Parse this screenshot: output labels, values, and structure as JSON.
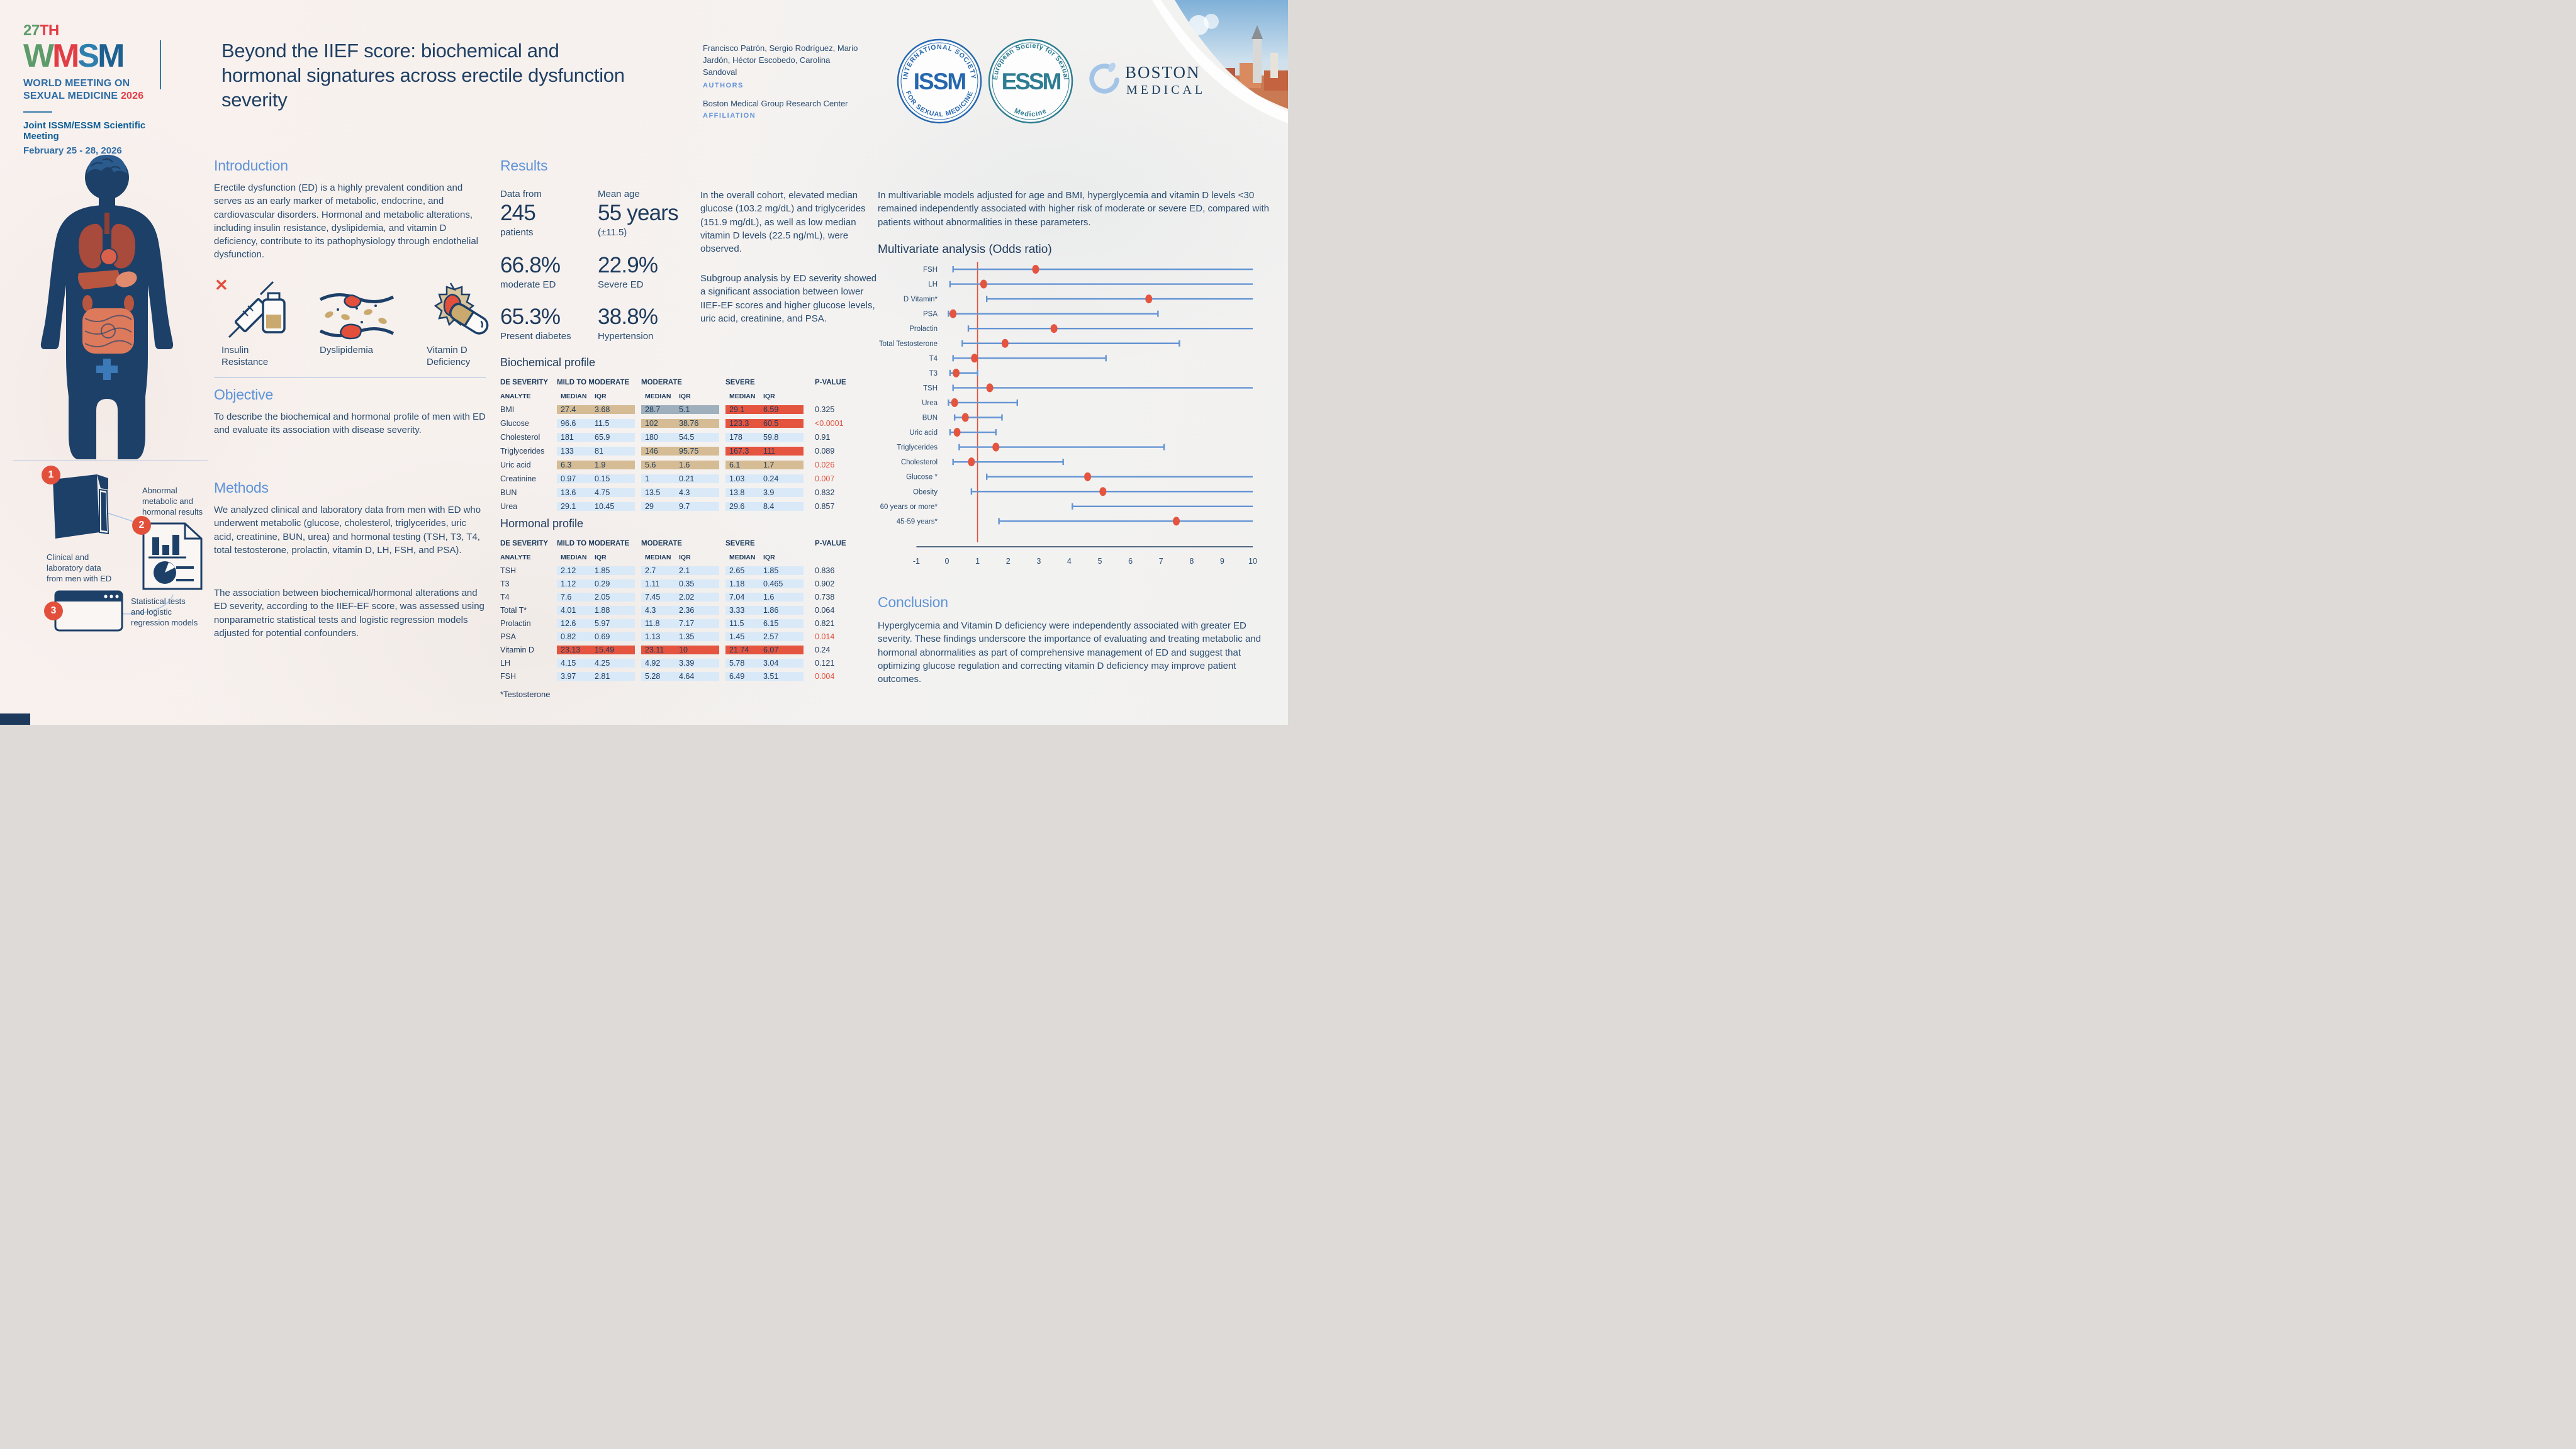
{
  "event": {
    "number_green": "27",
    "number_red": "TH",
    "letters": [
      {
        "ch": "W",
        "color": "#5d9b6a"
      },
      {
        "ch": "M",
        "color": "#e23c44"
      },
      {
        "ch": "S",
        "color": "#2f7fae"
      },
      {
        "ch": "M",
        "color": "#1e6091"
      }
    ],
    "name_line1": "WORLD MEETING ON",
    "name_line2": "SEXUAL MEDICINE",
    "year": "2026",
    "meeting": "Joint ISSM/ESSM Scientific Meeting",
    "dates": "February 25 - 28, 2026"
  },
  "header": {
    "title": "Beyond the IIEF score: biochemical and hormonal signatures across erectile dysfunction severity",
    "authors": "Francisco Patrón, Sergio Rodríguez, Mario Jardón, Héctor Escobedo, Carolina Sandoval",
    "authors_label": "AUTHORS",
    "affiliation": "Boston Medical Group Research Center",
    "affiliation_label": "AFFILIATION"
  },
  "logos": {
    "issm_center": "ISSM",
    "issm_top": "INTERNATIONAL SOCIETY",
    "issm_bottom": "FOR SEXUAL MEDICINE",
    "essm_center": "ESSM",
    "essm_top": "European Society for Sexual",
    "essm_bottom": "Medicine",
    "boston_line1": "BOSTON",
    "boston_line2": "MEDICAL"
  },
  "intro": {
    "heading": "Introduction",
    "text": "Erectile dysfunction (ED) is a highly prevalent condition and serves as an early marker of metabolic, endocrine, and cardiovascular disorders. Hormonal and metabolic alterations, including insulin resistance, dyslipidemia, and vitamin D deficiency, contribute to its pathophysiology through endothelial dysfunction.",
    "icons": [
      {
        "label": "Insulin\nResistance"
      },
      {
        "label": "Dyslipidemia"
      },
      {
        "label": "Vitamin D\nDeficiency"
      }
    ]
  },
  "objective": {
    "heading": "Objective",
    "text": "To describe the biochemical and hormonal profile of men with ED and evaluate its association with disease severity."
  },
  "methods": {
    "heading": "Methods",
    "p1": "We analyzed clinical and laboratory data from men with ED who underwent metabolic (glucose, cholesterol, triglycerides, uric acid, creatinine, BUN, urea) and hormonal testing (TSH, T3, T4, total testosterone, prolactin, vitamin D, LH, FSH, and PSA).",
    "p2": " The association between biochemical/hormonal alterations and ED severity, according to the IIEF-EF score, was assessed using nonparametric statistical tests and logistic regression models adjusted for potential confounders.",
    "steps": [
      {
        "num": "1",
        "label": "Clinical and\nlaboratory data\nfrom men with ED"
      },
      {
        "num": "2",
        "label": "Abnormal\nmetabolic and\nhormonal results"
      },
      {
        "num": "3",
        "label": "Statistical tests\nand logistic\nregression models"
      }
    ]
  },
  "results": {
    "heading": "Results",
    "stats": [
      {
        "label": "Data from",
        "big": "245",
        "sub": "patients"
      },
      {
        "label": "Mean age",
        "big": "55 years",
        "sub": "(±11.5)"
      },
      {
        "big": "66.8%",
        "sub": "moderate ED"
      },
      {
        "big": "22.9%",
        "sub": "Severe ED"
      },
      {
        "big": "65.3%",
        "sub": "Present diabetes"
      },
      {
        "big": "38.8%",
        "sub": "Hypertension"
      }
    ],
    "p1": "In the overall cohort, elevated median glucose (103.2 mg/dL) and triglycerides (151.9 mg/dL), as well as low median vitamin D levels (22.5 ng/mL), were observed.",
    "p2": "Subgroup analysis by ED severity showed a significant association between lower IIEF-EF scores and higher glucose levels, uric acid, creatinine, and PSA."
  },
  "multivariate": {
    "intro_text": "In multivariable models adjusted for age and BMI, hyperglycemia and vitamin D levels <30 remained independently associated with higher risk of moderate or severe ED, compared with patients without abnormalities in these parameters.",
    "heading": "Multivariate analysis (Odds ratio)"
  },
  "conclusion": {
    "heading": "Conclusion",
    "text": "Hyperglycemia and Vitamin D deficiency were independently associated with greater ED severity. These findings underscore the importance of evaluating and treating metabolic and hormonal abnormalities as part of comprehensive management of ED and suggest that optimizing glucose regulation and correcting vitamin D deficiency may improve patient outcomes."
  },
  "tables_footnote": "*Testosterone",
  "colors": {
    "accent_blue": "#5e93d8",
    "navy": "#1d3a5c",
    "body_text": "#2a4d71",
    "red": "#e2503c",
    "cell_tan": "#d5bc95",
    "cell_blue": "#d9e9f8",
    "cell_gray": "#9fafbc",
    "cell_red": "#e4543f",
    "ci_blue": "#6494d4"
  },
  "chart_data": [
    {
      "type": "scatter",
      "subtype": "forest-plot",
      "title": "Multivariate analysis (Odds ratio)",
      "xlabel": "Odds ratio",
      "xlim": [
        -1,
        10
      ],
      "x_ticks": [
        -1,
        0,
        1,
        2,
        3,
        4,
        5,
        6,
        7,
        8,
        9,
        10
      ],
      "reference_line": 1,
      "grid": false,
      "legend_position": "none",
      "rows": [
        {
          "label": "FSH",
          "or": 2.9,
          "lo": 0.2,
          "hi": 10,
          "hi_clipped": true
        },
        {
          "label": "LH",
          "or": 1.2,
          "lo": 0.1,
          "hi": 10,
          "hi_clipped": true
        },
        {
          "label": "D Vitamin*",
          "or": 6.6,
          "lo": 1.3,
          "hi": 10,
          "hi_clipped": true
        },
        {
          "label": "PSA",
          "or": 0.2,
          "lo": 0.05,
          "hi": 6.9,
          "hi_clipped": false
        },
        {
          "label": "Prolactin",
          "or": 3.5,
          "lo": 0.7,
          "hi": 10,
          "hi_clipped": true
        },
        {
          "label": "Total Testosterone",
          "or": 1.9,
          "lo": 0.5,
          "hi": 7.6,
          "hi_clipped": false
        },
        {
          "label": "T4",
          "or": 0.9,
          "lo": 0.2,
          "hi": 5.2,
          "hi_clipped": false
        },
        {
          "label": "T3",
          "or": 0.3,
          "lo": 0.1,
          "hi": 1.0,
          "hi_clipped": false
        },
        {
          "label": "TSH",
          "or": 1.4,
          "lo": 0.2,
          "hi": 10,
          "hi_clipped": true
        },
        {
          "label": "Urea",
          "or": 0.25,
          "lo": 0.05,
          "hi": 2.3,
          "hi_clipped": false
        },
        {
          "label": "BUN",
          "or": 0.6,
          "lo": 0.25,
          "hi": 1.8,
          "hi_clipped": false
        },
        {
          "label": "Uric acid",
          "or": 0.33,
          "lo": 0.1,
          "hi": 1.6,
          "hi_clipped": false
        },
        {
          "label": "Triglycerides",
          "or": 1.6,
          "lo": 0.4,
          "hi": 7.1,
          "hi_clipped": false
        },
        {
          "label": "Cholesterol",
          "or": 0.8,
          "lo": 0.2,
          "hi": 3.8,
          "hi_clipped": false
        },
        {
          "label": "Glucose *",
          "or": 4.6,
          "lo": 1.3,
          "hi": 10,
          "hi_clipped": true
        },
        {
          "label": "Obesity",
          "or": 5.1,
          "lo": 0.8,
          "hi": 10,
          "hi_clipped": true
        },
        {
          "label": "60 years or more*",
          "or": null,
          "lo": 4.1,
          "hi": 10,
          "hi_clipped": true
        },
        {
          "label": "45-59 years*",
          "or": 7.5,
          "lo": 1.7,
          "hi": 10,
          "hi_clipped": true
        }
      ]
    },
    {
      "type": "table",
      "title": "Biochemical profile",
      "corner_header": "DE SEVERITY",
      "group_headers": [
        "MILD TO MODERATE",
        "MODERATE",
        "SEVERE"
      ],
      "pvalue_header": "P-VALUE",
      "analyte_header": "ANALYTE",
      "stat_headers": [
        "MEDIAN",
        "IQR"
      ],
      "rows": [
        {
          "analyte": "BMI",
          "groups": [
            {
              "m": "27.4",
              "iqr": "3.68",
              "bg": "tan"
            },
            {
              "m": "28.7",
              "iqr": "5.1",
              "bg": "gray"
            },
            {
              "m": "29.1",
              "iqr": "6.59",
              "bg": "red"
            }
          ],
          "p": "0.325",
          "p_red": false
        },
        {
          "analyte": "Glucose",
          "groups": [
            {
              "m": "96.6",
              "iqr": "11.5",
              "bg": "blue"
            },
            {
              "m": "102",
              "iqr": "38.76",
              "bg": "tan"
            },
            {
              "m": "123.3",
              "iqr": "60.5",
              "bg": "red"
            }
          ],
          "p": "<0.0001",
          "p_red": true
        },
        {
          "analyte": "Cholesterol",
          "groups": [
            {
              "m": "181",
              "iqr": "65.9",
              "bg": "blue"
            },
            {
              "m": "180",
              "iqr": "54.5",
              "bg": "blue"
            },
            {
              "m": "178",
              "iqr": "59.8",
              "bg": "blue"
            }
          ],
          "p": "0.91",
          "p_red": false
        },
        {
          "analyte": "Triglycerides",
          "groups": [
            {
              "m": "133",
              "iqr": "81",
              "bg": "blue"
            },
            {
              "m": "146",
              "iqr": "95.75",
              "bg": "tan"
            },
            {
              "m": "167.3",
              "iqr": "111",
              "bg": "red"
            }
          ],
          "p": "0.089",
          "p_red": false
        },
        {
          "analyte": "Uric acid",
          "groups": [
            {
              "m": "6.3",
              "iqr": "1.9",
              "bg": "tan"
            },
            {
              "m": "5.6",
              "iqr": "1.6",
              "bg": "tan"
            },
            {
              "m": "6.1",
              "iqr": "1.7",
              "bg": "tan"
            }
          ],
          "p": "0.026",
          "p_red": true
        },
        {
          "analyte": "Creatinine",
          "groups": [
            {
              "m": "0.97",
              "iqr": "0.15",
              "bg": "blue"
            },
            {
              "m": "1",
              "iqr": "0.21",
              "bg": "blue"
            },
            {
              "m": "1.03",
              "iqr": "0.24",
              "bg": "blue"
            }
          ],
          "p": "0.007",
          "p_red": true
        },
        {
          "analyte": "BUN",
          "groups": [
            {
              "m": "13.6",
              "iqr": "4.75",
              "bg": "blue"
            },
            {
              "m": "13.5",
              "iqr": "4.3",
              "bg": "blue"
            },
            {
              "m": "13.8",
              "iqr": "3.9",
              "bg": "blue"
            }
          ],
          "p": "0.832",
          "p_red": false
        },
        {
          "analyte": "Urea",
          "groups": [
            {
              "m": "29.1",
              "iqr": "10.45",
              "bg": "blue"
            },
            {
              "m": "29",
              "iqr": "9.7",
              "bg": "blue"
            },
            {
              "m": "29.6",
              "iqr": "8.4",
              "bg": "blue"
            }
          ],
          "p": "0.857",
          "p_red": false
        }
      ]
    },
    {
      "type": "table",
      "title": "Hormonal profile",
      "corner_header": "DE SEVERITY",
      "group_headers": [
        "MILD TO MODERATE",
        "MODERATE",
        "SEVERE"
      ],
      "pvalue_header": "P-VALUE",
      "analyte_header": "ANALYTE",
      "stat_headers": [
        "MEDIAN",
        "IQR"
      ],
      "rows": [
        {
          "analyte": "TSH",
          "groups": [
            {
              "m": "2.12",
              "iqr": "1.85",
              "bg": "blue"
            },
            {
              "m": "2.7",
              "iqr": "2.1",
              "bg": "blue"
            },
            {
              "m": "2.65",
              "iqr": "1.85",
              "bg": "blue"
            }
          ],
          "p": "0.836",
          "p_red": false
        },
        {
          "analyte": "T3",
          "groups": [
            {
              "m": "1.12",
              "iqr": "0.29",
              "bg": "blue"
            },
            {
              "m": "1.11",
              "iqr": "0.35",
              "bg": "blue"
            },
            {
              "m": "1.18",
              "iqr": "0.465",
              "bg": "blue"
            }
          ],
          "p": "0.902",
          "p_red": false
        },
        {
          "analyte": "T4",
          "groups": [
            {
              "m": "7.6",
              "iqr": "2.05",
              "bg": "blue"
            },
            {
              "m": "7.45",
              "iqr": "2.02",
              "bg": "blue"
            },
            {
              "m": "7.04",
              "iqr": "1.6",
              "bg": "blue"
            }
          ],
          "p": "0.738",
          "p_red": false
        },
        {
          "analyte": "Total T*",
          "groups": [
            {
              "m": "4.01",
              "iqr": "1.88",
              "bg": "blue"
            },
            {
              "m": "4.3",
              "iqr": "2.36",
              "bg": "blue"
            },
            {
              "m": "3.33",
              "iqr": "1.86",
              "bg": "blue"
            }
          ],
          "p": "0.064",
          "p_red": false
        },
        {
          "analyte": "Prolactin",
          "groups": [
            {
              "m": "12.6",
              "iqr": "5.97",
              "bg": "blue"
            },
            {
              "m": "11.8",
              "iqr": "7.17",
              "bg": "blue"
            },
            {
              "m": "11.5",
              "iqr": "6.15",
              "bg": "blue"
            }
          ],
          "p": "0.821",
          "p_red": false
        },
        {
          "analyte": "PSA",
          "groups": [
            {
              "m": "0.82",
              "iqr": "0.69",
              "bg": "blue"
            },
            {
              "m": "1.13",
              "iqr": "1.35",
              "bg": "blue"
            },
            {
              "m": "1.45",
              "iqr": "2.57",
              "bg": "blue"
            }
          ],
          "p": "0.014",
          "p_red": true
        },
        {
          "analyte": "Vitamin D",
          "groups": [
            {
              "m": "23.13",
              "iqr": "15.49",
              "bg": "red"
            },
            {
              "m": "23.11",
              "iqr": "10",
              "bg": "red"
            },
            {
              "m": "21.74",
              "iqr": "6.07",
              "bg": "red"
            }
          ],
          "p": "0.24",
          "p_red": false
        },
        {
          "analyte": "LH",
          "groups": [
            {
              "m": "4.15",
              "iqr": "4.25",
              "bg": "blue"
            },
            {
              "m": "4.92",
              "iqr": "3.39",
              "bg": "blue"
            },
            {
              "m": "5.78",
              "iqr": "3.04",
              "bg": "blue"
            }
          ],
          "p": "0.121",
          "p_red": false
        },
        {
          "analyte": "FSH",
          "groups": [
            {
              "m": "3.97",
              "iqr": "2.81",
              "bg": "blue"
            },
            {
              "m": "5.28",
              "iqr": "4.64",
              "bg": "blue"
            },
            {
              "m": "6.49",
              "iqr": "3.51",
              "bg": "blue"
            }
          ],
          "p": "0.004",
          "p_red": true
        }
      ]
    }
  ]
}
